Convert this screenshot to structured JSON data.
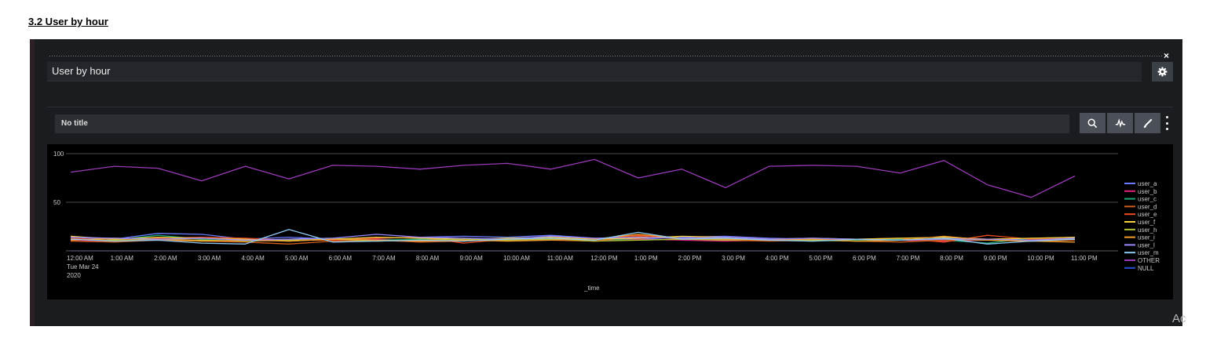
{
  "section": {
    "heading": "3.2 User by hour"
  },
  "panel": {
    "title": "User by hour",
    "close_symbol": "×",
    "viz_title": "No title",
    "toolbar_icons": [
      "search-icon",
      "pulse-icon",
      "brush-icon"
    ]
  },
  "watermark": "Ac",
  "chart_data": {
    "type": "line",
    "x_axis_label": "_time",
    "x_ticks": [
      "12:00 AM",
      "1:00 AM",
      "2:00 AM",
      "3:00 AM",
      "4:00 AM",
      "5:00 AM",
      "6:00 AM",
      "7:00 AM",
      "8:00 AM",
      "9:00 AM",
      "10:00 AM",
      "11:00 AM",
      "12:00 PM",
      "1:00 PM",
      "2:00 PM",
      "3:00 PM",
      "4:00 PM",
      "5:00 PM",
      "6:00 PM",
      "7:00 PM",
      "8:00 PM",
      "9:00 PM",
      "10:00 PM",
      "11:00 PM"
    ],
    "x_first_tick_extra": [
      "Tue Mar 24",
      "2020"
    ],
    "y_ticks": [
      100,
      50
    ],
    "ylim": [
      0,
      100
    ],
    "grid": true,
    "legend_position": "right",
    "series": [
      {
        "name": "user_a",
        "color": "#6a7bff",
        "values": [
          14,
          12,
          18,
          17,
          12,
          14,
          12,
          13,
          14,
          15,
          14,
          16,
          13,
          12,
          14,
          15,
          13,
          12,
          12,
          11,
          13,
          12,
          12,
          14
        ]
      },
      {
        "name": "user_b",
        "color": "#e0227a",
        "values": [
          11,
          10,
          12,
          11,
          10,
          11,
          11,
          12,
          10,
          11,
          11,
          12,
          11,
          12,
          11,
          10,
          11,
          11,
          12,
          11,
          10,
          11,
          11,
          12
        ]
      },
      {
        "name": "user_c",
        "color": "#1ea672",
        "values": [
          12,
          11,
          16,
          12,
          10,
          12,
          13,
          11,
          12,
          11,
          12,
          13,
          12,
          11,
          12,
          12,
          11,
          10,
          11,
          12,
          11,
          8,
          13,
          12
        ]
      },
      {
        "name": "user_d",
        "color": "#d05e1c",
        "values": [
          10,
          9,
          11,
          10,
          9,
          7,
          10,
          11,
          9,
          10,
          12,
          11,
          10,
          15,
          12,
          11,
          10,
          11,
          10,
          9,
          11,
          12,
          10,
          11
        ]
      },
      {
        "name": "user_e",
        "color": "#ef4b1e",
        "values": [
          13,
          11,
          13,
          14,
          13,
          11,
          11,
          13,
          14,
          8,
          12,
          13,
          12,
          16,
          13,
          14,
          12,
          11,
          12,
          13,
          9,
          16,
          12,
          13
        ]
      },
      {
        "name": "user_f",
        "color": "#f7d33e",
        "values": [
          15,
          12,
          14,
          13,
          12,
          10,
          12,
          14,
          13,
          12,
          13,
          14,
          12,
          13,
          15,
          14,
          12,
          13,
          12,
          13,
          14,
          12,
          13,
          14
        ]
      },
      {
        "name": "user_h",
        "color": "#b7c435",
        "values": [
          12,
          11,
          12,
          11,
          10,
          11,
          12,
          10,
          11,
          12,
          11,
          12,
          10,
          11,
          12,
          11,
          12,
          11,
          10,
          11,
          12,
          11,
          10,
          12
        ]
      },
      {
        "name": "user_i",
        "color": "#f59f2e",
        "values": [
          11,
          13,
          12,
          10,
          11,
          10,
          12,
          11,
          10,
          11,
          10,
          11,
          12,
          17,
          13,
          12,
          11,
          12,
          10,
          11,
          15,
          11,
          10,
          9
        ]
      },
      {
        "name": "user_l",
        "color": "#9b87ff",
        "values": [
          14,
          13,
          12,
          13,
          11,
          12,
          13,
          17,
          14,
          13,
          12,
          15,
          13,
          14,
          13,
          14,
          12,
          13,
          12,
          11,
          12,
          12,
          11,
          13
        ]
      },
      {
        "name": "user_m",
        "color": "#8ecbf2",
        "values": [
          12,
          10,
          11,
          8,
          7,
          22,
          9,
          10,
          11,
          10,
          12,
          13,
          11,
          19,
          12,
          13,
          11,
          10,
          12,
          11,
          13,
          7,
          10,
          12
        ]
      },
      {
        "name": "OTHER",
        "color": "#9a3ab8",
        "values": [
          81,
          87,
          85,
          72,
          87,
          74,
          88,
          87,
          84,
          88,
          90,
          84,
          94,
          75,
          84,
          65,
          87,
          88,
          87,
          80,
          93,
          68,
          55,
          77
        ]
      },
      {
        "name": "NULL",
        "color": "#2a4fd6",
        "values": [
          0,
          0,
          0,
          0,
          0,
          0,
          0,
          0,
          0,
          0,
          0,
          0,
          0,
          0,
          0,
          0,
          0,
          0,
          0,
          0,
          0,
          0,
          0,
          0
        ]
      }
    ]
  }
}
